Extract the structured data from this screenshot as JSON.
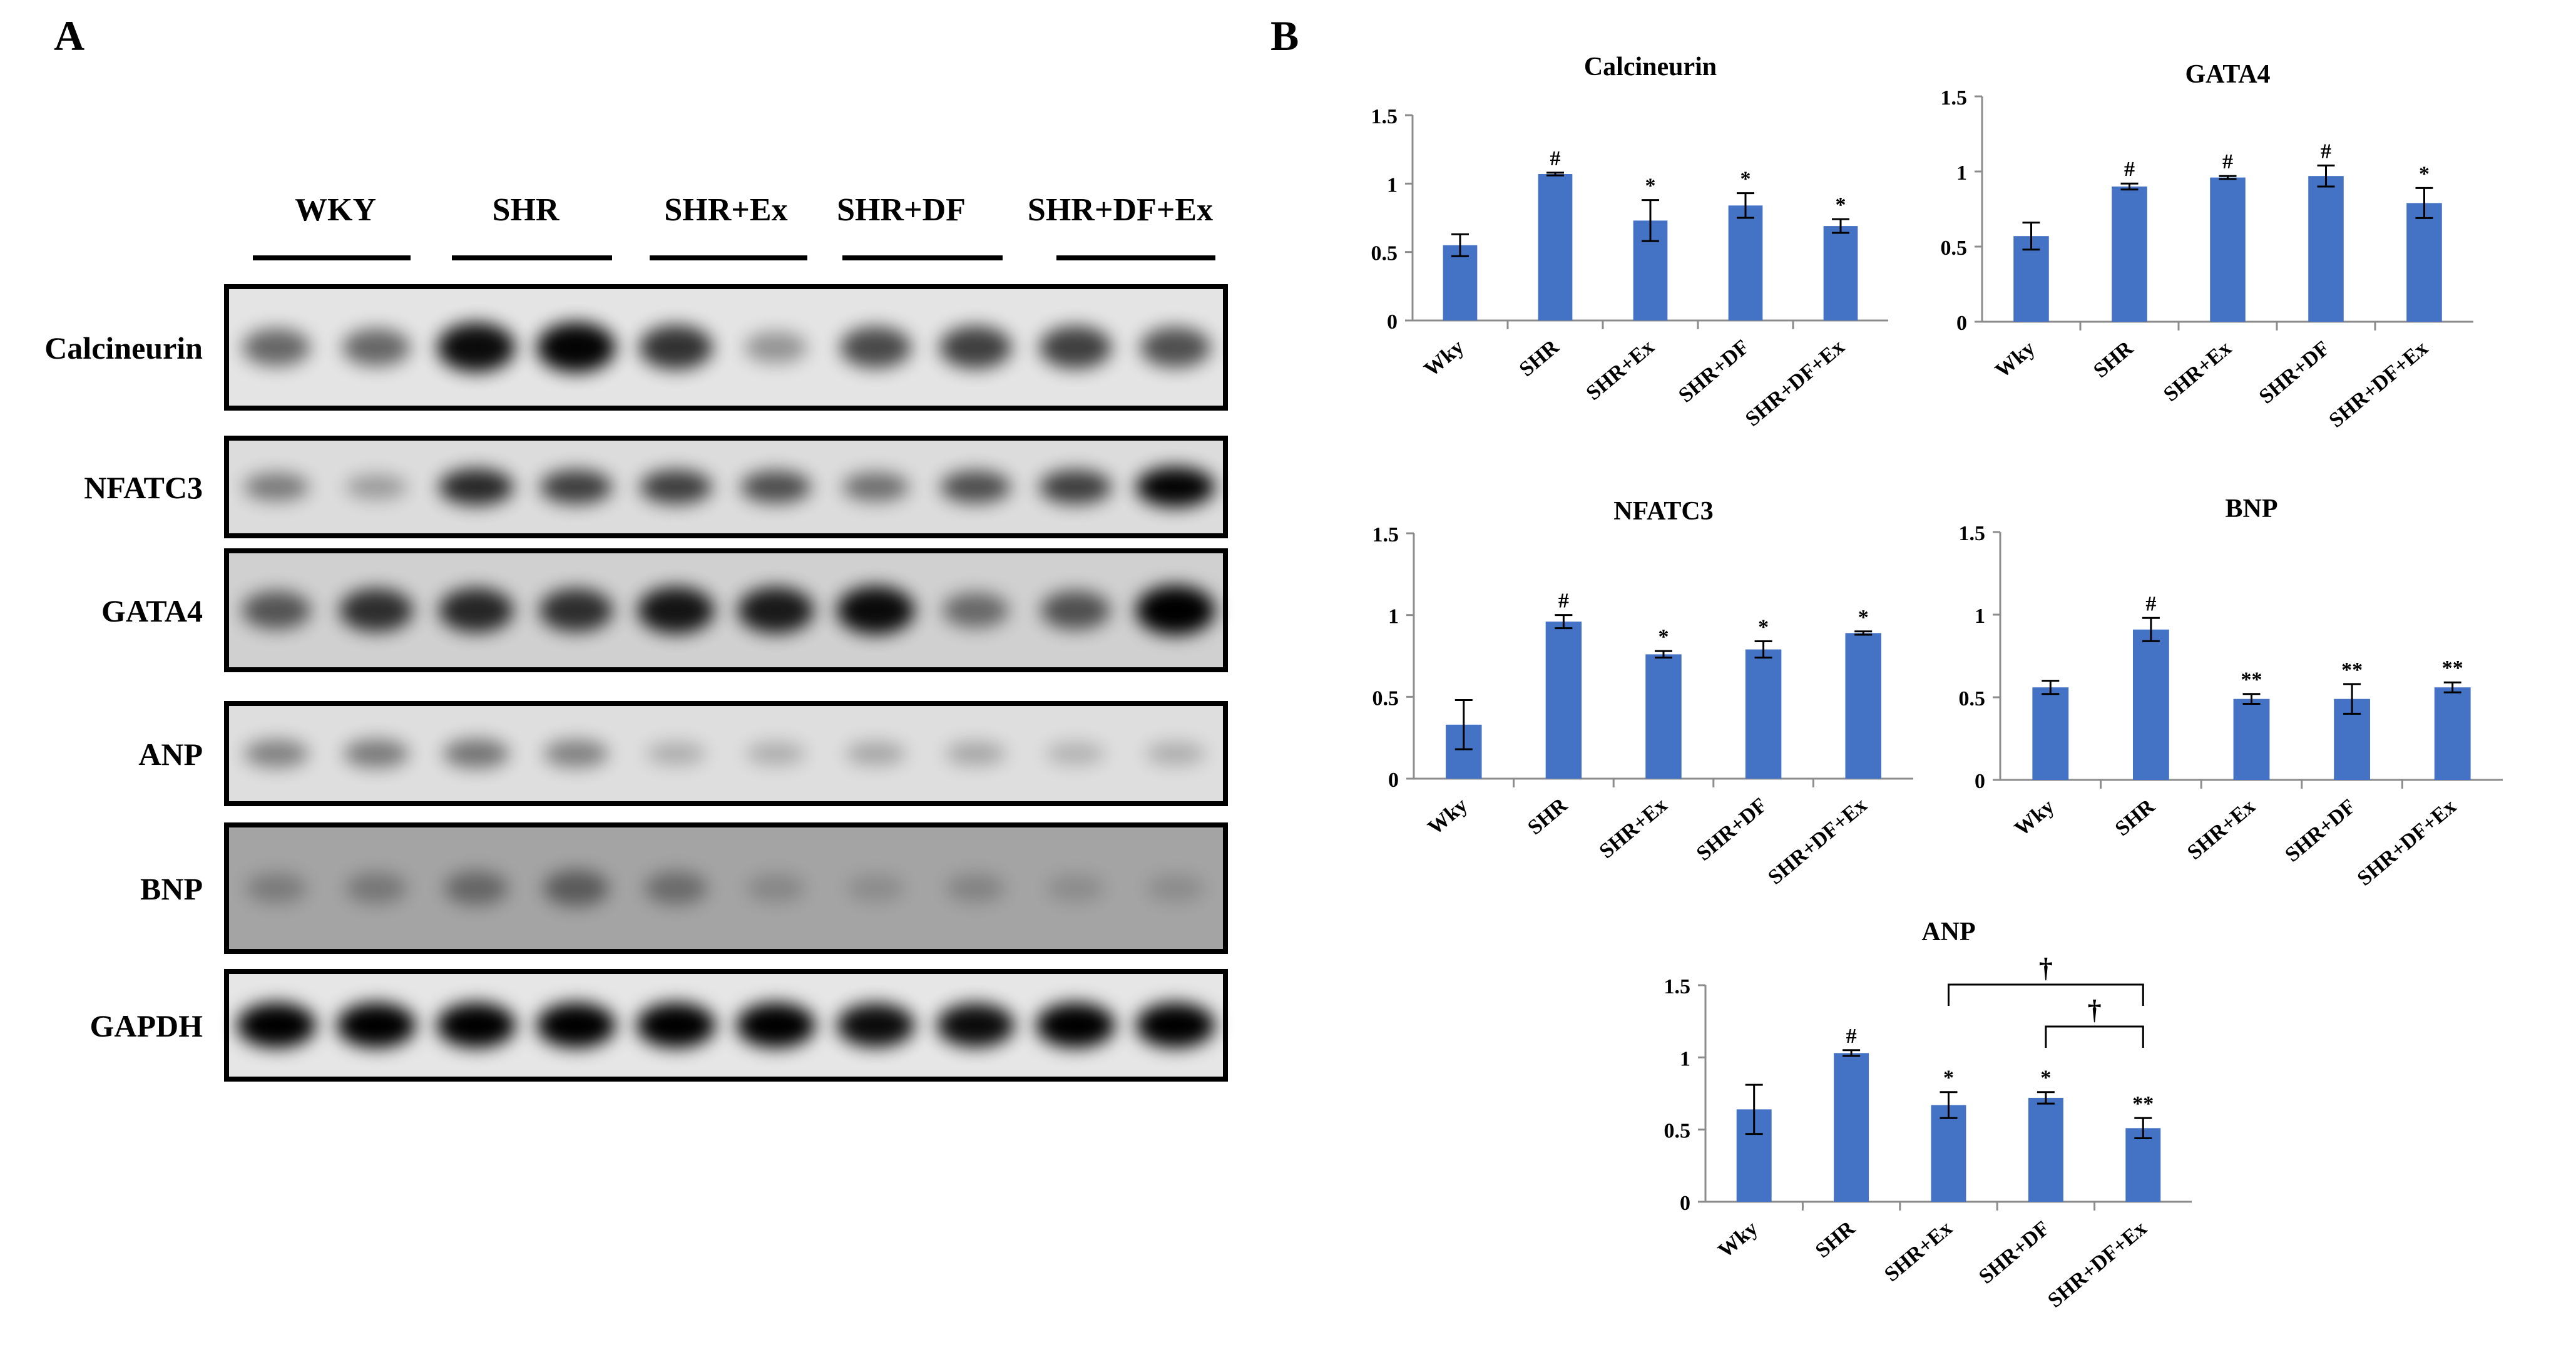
{
  "panels": {
    "a": "A",
    "b": "B"
  },
  "western_blot": {
    "groups": [
      "WKY",
      "SHR",
      "SHR+Ex",
      "SHR+DF",
      "SHR+DF+Ex"
    ],
    "proteins": [
      "Calcineurin",
      "NFATC3",
      "GATA4",
      "ANP",
      "BNP",
      "GAPDH"
    ],
    "band_intensity": [
      [
        0.55,
        0.55,
        0.95,
        0.98,
        0.78,
        0.35,
        0.68,
        0.72,
        0.72,
        0.65
      ],
      [
        0.45,
        0.3,
        0.82,
        0.72,
        0.72,
        0.65,
        0.5,
        0.65,
        0.72,
        0.98
      ],
      [
        0.6,
        0.78,
        0.82,
        0.78,
        0.9,
        0.88,
        0.95,
        0.5,
        0.62,
        1.0
      ],
      [
        0.42,
        0.45,
        0.48,
        0.42,
        0.22,
        0.22,
        0.25,
        0.25,
        0.2,
        0.22
      ],
      [
        0.25,
        0.28,
        0.38,
        0.45,
        0.35,
        0.18,
        0.15,
        0.2,
        0.15,
        0.15
      ],
      [
        1.0,
        1.0,
        1.0,
        1.0,
        1.0,
        1.0,
        0.95,
        0.95,
        1.0,
        1.0
      ]
    ]
  },
  "colors": {
    "bar": "#4472C4",
    "band": "#000000"
  },
  "chart_data": [
    {
      "type": "bar",
      "title": "Calcineurin",
      "categories": [
        "Wky",
        "SHR",
        "SHR+Ex",
        "SHR+DF",
        "SHR+DF+Ex"
      ],
      "values": [
        0.55,
        1.07,
        0.73,
        0.84,
        0.69
      ],
      "errors": [
        0.08,
        0.01,
        0.15,
        0.09,
        0.05
      ],
      "annotations": [
        "",
        "#",
        "*",
        "*",
        "*"
      ],
      "ylim": [
        0,
        1.5
      ],
      "yticks": [
        "0",
        "0.5",
        "1",
        "1.5"
      ]
    },
    {
      "type": "bar",
      "title": "GATA4",
      "categories": [
        "Wky",
        "SHR",
        "SHR+Ex",
        "SHR+DF",
        "SHR+DF+Ex"
      ],
      "values": [
        0.57,
        0.9,
        0.96,
        0.97,
        0.79
      ],
      "errors": [
        0.09,
        0.02,
        0.01,
        0.07,
        0.1
      ],
      "annotations": [
        "",
        "#",
        "#",
        "#",
        "*"
      ],
      "ylim": [
        0,
        1.5
      ],
      "yticks": [
        "0",
        "0.5",
        "1",
        "1.5"
      ]
    },
    {
      "type": "bar",
      "title": "NFATC3",
      "categories": [
        "Wky",
        "SHR",
        "SHR+Ex",
        "SHR+DF",
        "SHR+DF+Ex"
      ],
      "values": [
        0.33,
        0.96,
        0.76,
        0.79,
        0.89
      ],
      "errors": [
        0.15,
        0.04,
        0.02,
        0.05,
        0.01
      ],
      "annotations": [
        "",
        "#",
        "*",
        "*",
        "*"
      ],
      "ylim": [
        0,
        1.5
      ],
      "yticks": [
        "0",
        "0.5",
        "1",
        "1.5"
      ]
    },
    {
      "type": "bar",
      "title": "BNP",
      "categories": [
        "Wky",
        "SHR",
        "SHR+Ex",
        "SHR+DF",
        "SHR+DF+Ex"
      ],
      "values": [
        0.56,
        0.91,
        0.49,
        0.49,
        0.56
      ],
      "errors": [
        0.04,
        0.07,
        0.03,
        0.09,
        0.03
      ],
      "annotations": [
        "",
        "#",
        "**",
        "**",
        "**"
      ],
      "ylim": [
        0,
        1.5
      ],
      "yticks": [
        "0",
        "0.5",
        "1",
        "1.5"
      ]
    },
    {
      "type": "bar",
      "title": "ANP",
      "categories": [
        "Wky",
        "SHR",
        "SHR+Ex",
        "SHR+DF",
        "SHR+DF+Ex"
      ],
      "values": [
        0.64,
        1.03,
        0.67,
        0.72,
        0.51
      ],
      "errors": [
        0.17,
        0.02,
        0.09,
        0.04,
        0.07
      ],
      "annotations": [
        "",
        "#",
        "*",
        "*",
        "**"
      ],
      "brackets": [
        {
          "from": "SHR+Ex",
          "to": "SHR+DF+Ex",
          "label": "†"
        },
        {
          "from": "SHR+DF",
          "to": "SHR+DF+Ex",
          "label": "†"
        }
      ],
      "ylim": [
        0,
        1.5
      ],
      "yticks": [
        "0",
        "0.5",
        "1",
        "1.5"
      ]
    }
  ]
}
